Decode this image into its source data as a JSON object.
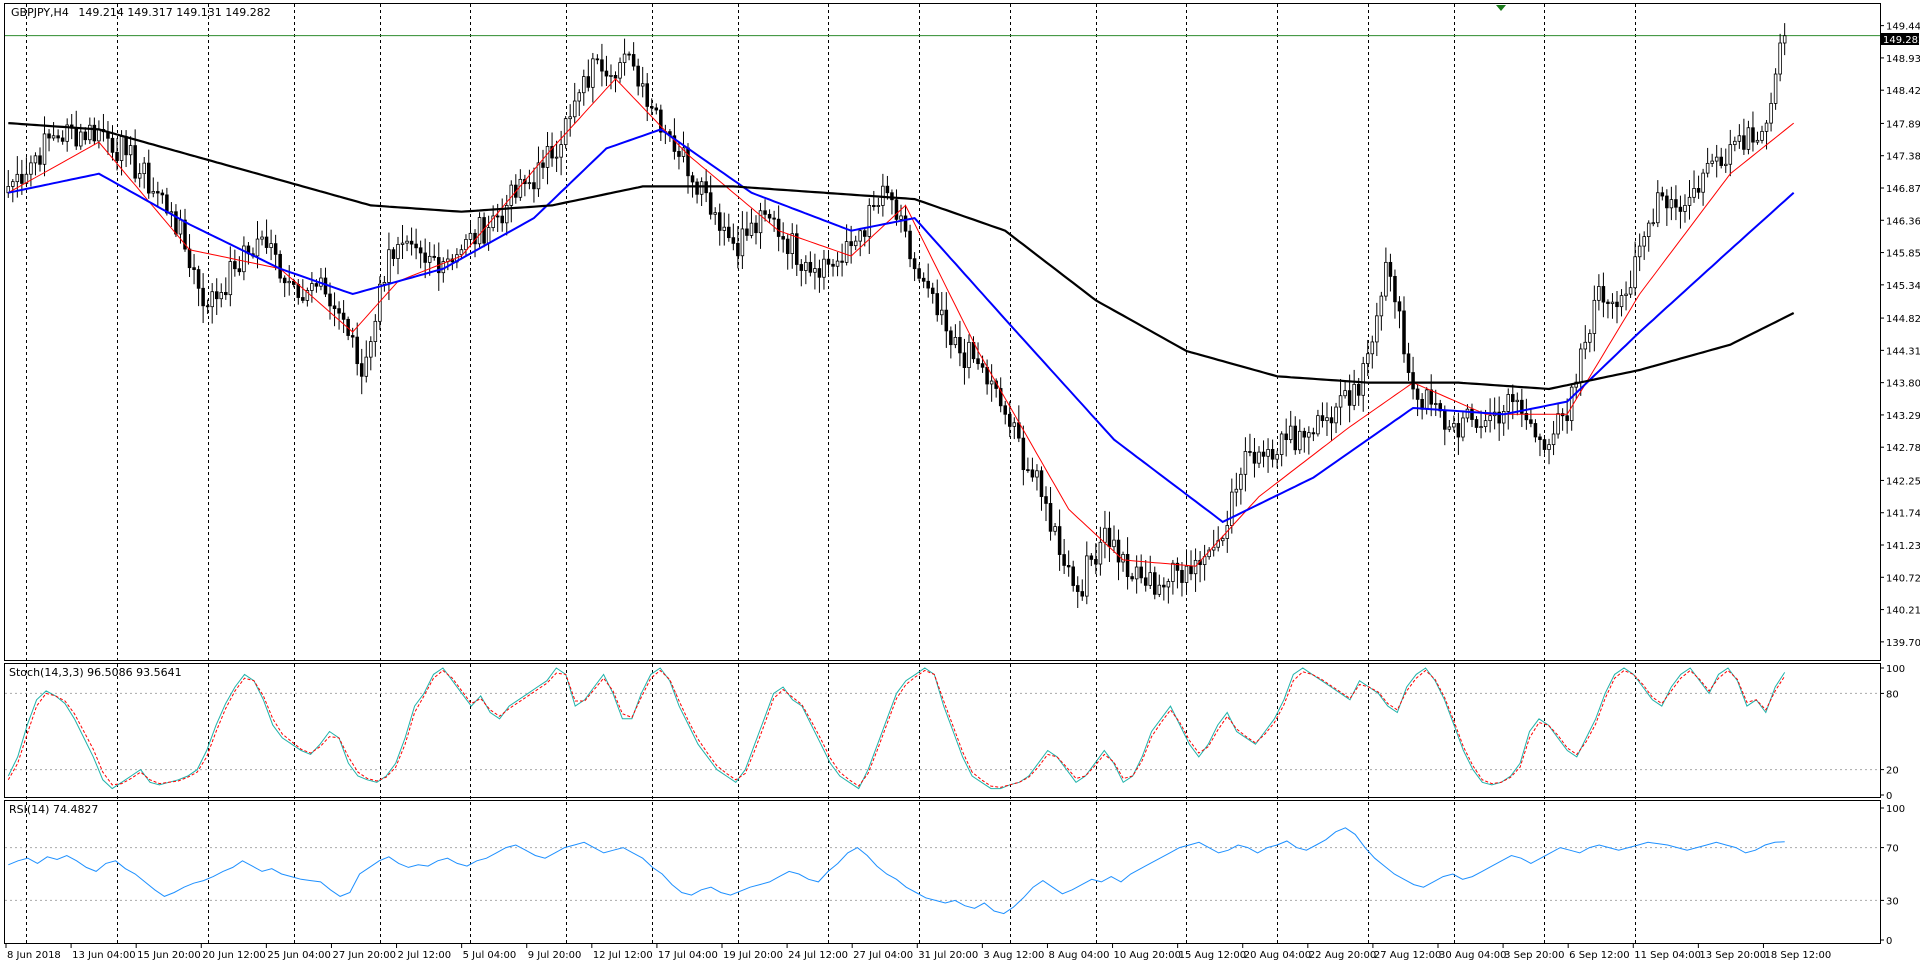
{
  "chart_data": [
    {
      "type": "candlestick",
      "title": "GBPJPY,H4",
      "ohlc_readout": "149.214 149.317 149.131 149.282",
      "last_price_label": "149.282",
      "last_price": 149.282,
      "ylim": [
        139.45,
        149.75
      ],
      "y_ticks": [
        "149.440",
        "148.930",
        "148.420",
        "147.895",
        "147.385",
        "146.875",
        "146.365",
        "145.855",
        "145.345",
        "144.820",
        "144.310",
        "143.800",
        "143.290",
        "142.780",
        "142.255",
        "141.745",
        "141.235",
        "140.725",
        "140.215",
        "139.705"
      ],
      "x_ticks": [
        "8 Jun 2018",
        "13 Jun 04:00",
        "15 Jun 20:00",
        "20 Jun 12:00",
        "25 Jun 04:00",
        "27 Jun 20:00",
        "2 Jul 12:00",
        "5 Jul 04:00",
        "9 Jul 20:00",
        "12 Jul 12:00",
        "17 Jul 04:00",
        "19 Jul 20:00",
        "24 Jul 12:00",
        "27 Jul 04:00",
        "31 Jul 20:00",
        "3 Aug 12:00",
        "8 Aug 04:00",
        "10 Aug 20:00",
        "15 Aug 12:00",
        "20 Aug 04:00",
        "22 Aug 20:00",
        "27 Aug 12:00",
        "30 Aug 04:00",
        "3 Sep 20:00",
        "6 Sep 12:00",
        "11 Sep 04:00",
        "13 Sep 20:00",
        "18 Sep 12:00"
      ],
      "close_anchors": [
        [
          0,
          146.9
        ],
        [
          10,
          147.7
        ],
        [
          20,
          147.8
        ],
        [
          26,
          147.4
        ],
        [
          36,
          146.5
        ],
        [
          44,
          145.0
        ],
        [
          50,
          145.6
        ],
        [
          56,
          146.1
        ],
        [
          62,
          145.4
        ],
        [
          70,
          145.2
        ],
        [
          74,
          144.8
        ],
        [
          78,
          143.9
        ],
        [
          84,
          145.9
        ],
        [
          92,
          145.7
        ],
        [
          100,
          145.9
        ],
        [
          110,
          146.6
        ],
        [
          118,
          147.2
        ],
        [
          124,
          148.0
        ],
        [
          130,
          148.9
        ],
        [
          138,
          148.8
        ],
        [
          146,
          147.7
        ],
        [
          154,
          146.8
        ],
        [
          160,
          146.0
        ],
        [
          168,
          146.4
        ],
        [
          176,
          145.7
        ],
        [
          184,
          145.7
        ],
        [
          188,
          146.2
        ],
        [
          194,
          146.8
        ],
        [
          200,
          145.6
        ],
        [
          208,
          144.4
        ],
        [
          214,
          144.1
        ],
        [
          220,
          143.3
        ],
        [
          228,
          142.0
        ],
        [
          236,
          140.5
        ],
        [
          242,
          141.5
        ],
        [
          248,
          140.7
        ],
        [
          254,
          140.6
        ],
        [
          260,
          140.9
        ],
        [
          266,
          141.2
        ],
        [
          274,
          142.7
        ],
        [
          282,
          142.9
        ],
        [
          290,
          143.2
        ],
        [
          298,
          143.6
        ],
        [
          304,
          145.7
        ],
        [
          310,
          143.7
        ],
        [
          318,
          143.1
        ],
        [
          326,
          143.2
        ],
        [
          332,
          143.5
        ],
        [
          338,
          142.9
        ],
        [
          344,
          143.2
        ],
        [
          350,
          145.1
        ],
        [
          358,
          145.3
        ],
        [
          364,
          146.8
        ],
        [
          370,
          146.6
        ],
        [
          376,
          147.3
        ],
        [
          382,
          147.7
        ],
        [
          388,
          147.9
        ],
        [
          392,
          149.28
        ]
      ],
      "series": [
        {
          "name": "",
          "kind": "moving-average",
          "color": "#ff0000",
          "points": [
            [
              0,
              146.8
            ],
            [
              20,
              147.6
            ],
            [
              40,
              145.9
            ],
            [
              60,
              145.6
            ],
            [
              76,
              144.6
            ],
            [
              86,
              145.4
            ],
            [
              100,
              145.8
            ],
            [
              120,
              147.5
            ],
            [
              134,
              148.6
            ],
            [
              150,
              147.4
            ],
            [
              170,
              146.2
            ],
            [
              186,
              145.8
            ],
            [
              198,
              146.6
            ],
            [
              214,
              144.3
            ],
            [
              234,
              141.8
            ],
            [
              246,
              141.0
            ],
            [
              262,
              140.9
            ],
            [
              276,
              142.0
            ],
            [
              296,
              143.1
            ],
            [
              310,
              143.8
            ],
            [
              326,
              143.3
            ],
            [
              344,
              143.3
            ],
            [
              360,
              145.2
            ],
            [
              380,
              147.1
            ],
            [
              394,
              147.9
            ]
          ]
        },
        {
          "name": "",
          "kind": "moving-average",
          "color": "#0000ff",
          "points": [
            [
              0,
              146.8
            ],
            [
              20,
              147.1
            ],
            [
              40,
              146.3
            ],
            [
              60,
              145.6
            ],
            [
              76,
              145.2
            ],
            [
              96,
              145.6
            ],
            [
              116,
              146.4
            ],
            [
              132,
              147.5
            ],
            [
              144,
              147.8
            ],
            [
              164,
              146.8
            ],
            [
              186,
              146.2
            ],
            [
              200,
              146.4
            ],
            [
              220,
              144.8
            ],
            [
              244,
              142.9
            ],
            [
              268,
              141.6
            ],
            [
              288,
              142.3
            ],
            [
              310,
              143.4
            ],
            [
              330,
              143.3
            ],
            [
              344,
              143.5
            ],
            [
              360,
              144.6
            ],
            [
              380,
              145.9
            ],
            [
              394,
              146.8
            ]
          ]
        },
        {
          "name": "",
          "kind": "moving-average",
          "color": "#000000",
          "points": [
            [
              0,
              147.9
            ],
            [
              20,
              147.8
            ],
            [
              40,
              147.4
            ],
            [
              60,
              147.0
            ],
            [
              80,
              146.6
            ],
            [
              100,
              146.5
            ],
            [
              120,
              146.6
            ],
            [
              140,
              146.9
            ],
            [
              160,
              146.9
            ],
            [
              180,
              146.8
            ],
            [
              200,
              146.7
            ],
            [
              220,
              146.2
            ],
            [
              240,
              145.1
            ],
            [
              260,
              144.3
            ],
            [
              280,
              143.9
            ],
            [
              300,
              143.8
            ],
            [
              320,
              143.8
            ],
            [
              340,
              143.7
            ],
            [
              360,
              144.0
            ],
            [
              380,
              144.4
            ],
            [
              394,
              144.9
            ]
          ]
        }
      ],
      "vline_indices": [
        4,
        24,
        44,
        63,
        82,
        102,
        123,
        142,
        161,
        181,
        201,
        221,
        240,
        260,
        280,
        300,
        319,
        339,
        359
      ]
    },
    {
      "type": "line",
      "title": "Stoch(14,3,3) 96.5086 93.5641",
      "ylim": [
        0,
        100
      ],
      "levels": [
        20,
        80
      ],
      "y_ticks": [
        "100",
        "80",
        "20",
        "0"
      ],
      "series": [
        {
          "name": "",
          "color": "#20b2aa",
          "style": "solid",
          "values": [
            15,
            30,
            55,
            75,
            82,
            78,
            72,
            60,
            45,
            30,
            12,
            5,
            10,
            15,
            20,
            10,
            8,
            10,
            12,
            15,
            20,
            35,
            55,
            72,
            85,
            95,
            90,
            75,
            55,
            45,
            40,
            35,
            32,
            40,
            50,
            45,
            25,
            15,
            12,
            10,
            15,
            25,
            45,
            70,
            80,
            95,
            100,
            90,
            80,
            70,
            78,
            65,
            60,
            70,
            75,
            80,
            85,
            90,
            100,
            95,
            70,
            75,
            85,
            95,
            80,
            60,
            60,
            80,
            95,
            100,
            90,
            70,
            55,
            40,
            30,
            20,
            15,
            10,
            20,
            40,
            60,
            80,
            85,
            75,
            70,
            55,
            40,
            25,
            15,
            10,
            5,
            20,
            40,
            60,
            80,
            90,
            95,
            100,
            95,
            70,
            50,
            30,
            15,
            10,
            5,
            5,
            8,
            10,
            15,
            25,
            35,
            30,
            20,
            10,
            15,
            25,
            35,
            25,
            10,
            15,
            30,
            50,
            60,
            70,
            55,
            40,
            30,
            40,
            55,
            65,
            50,
            45,
            40,
            50,
            60,
            75,
            95,
            100,
            95,
            90,
            85,
            80,
            75,
            90,
            85,
            80,
            70,
            65,
            85,
            95,
            100,
            90,
            75,
            55,
            35,
            20,
            10,
            8,
            10,
            15,
            25,
            50,
            60,
            55,
            45,
            35,
            30,
            45,
            60,
            80,
            95,
            100,
            95,
            85,
            75,
            70,
            85,
            95,
            100,
            90,
            80,
            95,
            100,
            90,
            70,
            75,
            65,
            85,
            96.5
          ]
        },
        {
          "name": "",
          "color": "#ff0000",
          "style": "dashed",
          "values": [
            12,
            25,
            48,
            70,
            80,
            78,
            74,
            64,
            50,
            36,
            18,
            8,
            9,
            13,
            18,
            12,
            9,
            10,
            11,
            14,
            18,
            30,
            50,
            68,
            82,
            92,
            90,
            78,
            60,
            48,
            42,
            36,
            33,
            38,
            46,
            45,
            30,
            18,
            13,
            11,
            14,
            22,
            40,
            65,
            78,
            92,
            98,
            92,
            82,
            72,
            76,
            67,
            62,
            68,
            73,
            78,
            83,
            88,
            96,
            95,
            74,
            74,
            83,
            92,
            82,
            64,
            61,
            77,
            92,
            98,
            91,
            74,
            58,
            44,
            33,
            23,
            17,
            12,
            17,
            35,
            55,
            76,
            83,
            77,
            71,
            58,
            44,
            29,
            18,
            12,
            7,
            17,
            36,
            56,
            76,
            87,
            93,
            98,
            95,
            74,
            54,
            34,
            18,
            12,
            7,
            6,
            8,
            10,
            14,
            22,
            32,
            30,
            22,
            13,
            15,
            23,
            32,
            26,
            13,
            15,
            27,
            46,
            57,
            67,
            57,
            43,
            33,
            38,
            51,
            62,
            52,
            46,
            41,
            48,
            57,
            71,
            90,
            97,
            95,
            91,
            86,
            81,
            76,
            87,
            85,
            81,
            72,
            67,
            82,
            92,
            98,
            91,
            77,
            58,
            38,
            23,
            12,
            9,
            10,
            14,
            22,
            45,
            57,
            55,
            47,
            37,
            32,
            42,
            56,
            76,
            92,
            98,
            95,
            87,
            77,
            72,
            82,
            92,
            98,
            91,
            82,
            92,
            98,
            91,
            73,
            75,
            67,
            82,
            93.6
          ]
        }
      ]
    },
    {
      "type": "line",
      "title": "RSI(14) 74.4827",
      "ylim": [
        0,
        100
      ],
      "levels": [
        30,
        70
      ],
      "y_ticks": [
        "100",
        "70",
        "30",
        "0"
      ],
      "series": [
        {
          "name": "",
          "color": "#1e90ff",
          "style": "solid",
          "values": [
            57,
            60,
            62,
            58,
            63,
            61,
            64,
            60,
            55,
            52,
            58,
            60,
            54,
            50,
            44,
            38,
            33,
            36,
            40,
            43,
            45,
            48,
            52,
            55,
            60,
            56,
            52,
            54,
            50,
            48,
            46,
            45,
            44,
            38,
            33,
            36,
            50,
            55,
            60,
            63,
            58,
            55,
            57,
            56,
            60,
            62,
            58,
            56,
            60,
            62,
            66,
            70,
            72,
            68,
            64,
            62,
            66,
            70,
            72,
            74,
            70,
            66,
            68,
            70,
            66,
            62,
            55,
            50,
            42,
            36,
            34,
            38,
            40,
            36,
            34,
            37,
            40,
            42,
            44,
            48,
            52,
            50,
            46,
            44,
            52,
            58,
            66,
            70,
            64,
            56,
            50,
            46,
            40,
            36,
            32,
            30,
            28,
            30,
            26,
            24,
            28,
            22,
            20,
            25,
            32,
            40,
            45,
            40,
            35,
            38,
            42,
            46,
            44,
            48,
            44,
            50,
            54,
            58,
            62,
            66,
            70,
            72,
            74,
            70,
            66,
            68,
            72,
            70,
            66,
            70,
            72,
            75,
            70,
            68,
            72,
            76,
            82,
            85,
            80,
            70,
            62,
            56,
            50,
            46,
            42,
            40,
            44,
            48,
            50,
            46,
            48,
            52,
            56,
            60,
            64,
            62,
            58,
            62,
            66,
            70,
            68,
            66,
            70,
            72,
            70,
            68,
            70,
            72,
            74,
            73,
            72,
            70,
            68,
            70,
            72,
            74,
            72,
            70,
            66,
            68,
            72,
            74,
            74.5
          ]
        }
      ]
    }
  ]
}
